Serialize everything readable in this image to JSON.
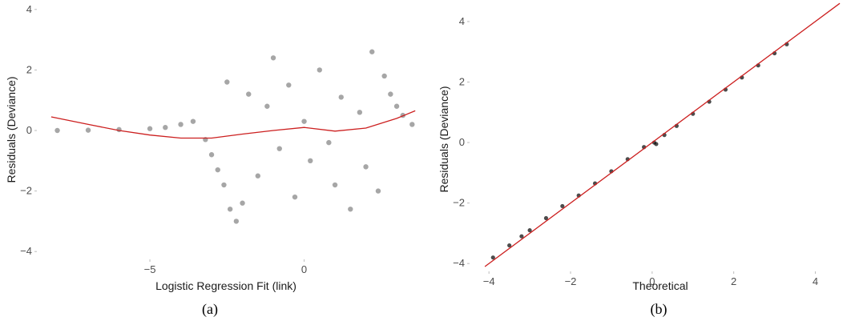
{
  "chart_data": [
    {
      "type": "scatter",
      "panel": "(a)",
      "xlabel": "Logistic Regression Fit (link)",
      "ylabel": "Residuals (Deviance)",
      "xlim": [
        -8.3,
        3.7
      ],
      "ylim": [
        -4.1,
        4.1
      ],
      "x_ticks": [
        -5,
        0
      ],
      "y_ticks": [
        -4,
        -2,
        0,
        2,
        4
      ],
      "x_tick_labels": [
        "−5",
        "0"
      ],
      "y_tick_labels": [
        "−4",
        "−2",
        "0",
        "2",
        "4"
      ],
      "grid": false,
      "point_color": "#000000",
      "series": [
        {
          "type": "scatter",
          "description_points": "dense cloud of semi-transparent points",
          "points": [
            [
              -8,
              0.0
            ],
            [
              -7,
              0.01
            ],
            [
              -6,
              0.03
            ],
            [
              -5,
              0.06
            ],
            [
              -4.5,
              0.1
            ],
            [
              -4,
              0.2
            ],
            [
              -3.6,
              0.3
            ],
            [
              -3.2,
              -0.3
            ],
            [
              -3,
              -0.8
            ],
            [
              -2.8,
              -1.3
            ],
            [
              -2.6,
              -1.8
            ],
            [
              -2.4,
              -2.6
            ],
            [
              -2.2,
              -3.0
            ],
            [
              -2.5,
              1.6
            ],
            [
              -2.0,
              -2.4
            ],
            [
              -1.8,
              1.2
            ],
            [
              -1.5,
              -1.5
            ],
            [
              -1.2,
              0.8
            ],
            [
              -1.0,
              2.4
            ],
            [
              -0.8,
              -0.6
            ],
            [
              -0.5,
              1.5
            ],
            [
              -0.3,
              -2.2
            ],
            [
              0,
              0.3
            ],
            [
              0.2,
              -1.0
            ],
            [
              0.5,
              2.0
            ],
            [
              0.8,
              -0.4
            ],
            [
              1.0,
              -1.8
            ],
            [
              1.2,
              1.1
            ],
            [
              1.5,
              -2.6
            ],
            [
              1.8,
              0.6
            ],
            [
              2.0,
              -1.2
            ],
            [
              2.2,
              2.6
            ],
            [
              2.4,
              -2.0
            ],
            [
              2.6,
              1.8
            ],
            [
              2.8,
              1.2
            ],
            [
              3.0,
              0.8
            ],
            [
              3.2,
              0.5
            ],
            [
              3.5,
              0.2
            ]
          ]
        },
        {
          "type": "line",
          "name": "",
          "color": "#cc1f1f",
          "points": [
            [
              -8.2,
              0.45
            ],
            [
              -7,
              0.2
            ],
            [
              -6,
              0.0
            ],
            [
              -5,
              -0.15
            ],
            [
              -4,
              -0.25
            ],
            [
              -3,
              -0.25
            ],
            [
              -2,
              -0.12
            ],
            [
              -1,
              0.0
            ],
            [
              0,
              0.1
            ],
            [
              1,
              -0.02
            ],
            [
              2,
              0.08
            ],
            [
              3,
              0.4
            ],
            [
              3.6,
              0.65
            ]
          ]
        }
      ]
    },
    {
      "type": "scatter",
      "panel": "(b)",
      "xlabel": "Theoretical",
      "ylabel": "Residuals (Deviance)",
      "xlim": [
        -4.2,
        4.6
      ],
      "ylim": [
        -4.1,
        4.5
      ],
      "x_ticks": [
        -4,
        -2,
        0,
        2,
        4
      ],
      "y_ticks": [
        -4,
        -2,
        0,
        2,
        4
      ],
      "x_tick_labels": [
        "−4",
        "−2",
        "0",
        "2",
        "4"
      ],
      "y_tick_labels": [
        "−4",
        "−2",
        "0",
        "2",
        "4"
      ],
      "grid": false,
      "series": [
        {
          "type": "scatter",
          "points": [
            [
              -3.9,
              -3.8
            ],
            [
              -3.5,
              -3.4
            ],
            [
              -3.2,
              -3.1
            ],
            [
              -3,
              -2.9
            ],
            [
              -2.6,
              -2.5
            ],
            [
              -2.2,
              -2.1
            ],
            [
              -1.8,
              -1.75
            ],
            [
              -1.4,
              -1.35
            ],
            [
              -1,
              -0.95
            ],
            [
              -0.6,
              -0.55
            ],
            [
              -0.2,
              -0.15
            ],
            [
              0.05,
              0.0
            ],
            [
              0.1,
              -0.05
            ],
            [
              0.3,
              0.25
            ],
            [
              0.6,
              0.55
            ],
            [
              1,
              0.95
            ],
            [
              1.4,
              1.35
            ],
            [
              1.8,
              1.75
            ],
            [
              2.2,
              2.15
            ],
            [
              2.6,
              2.55
            ],
            [
              3,
              2.95
            ],
            [
              3.3,
              3.25
            ]
          ]
        },
        {
          "type": "line",
          "name": "",
          "color": "#cc1f1f",
          "points": [
            [
              -4.1,
              -4.1
            ],
            [
              4.6,
              4.6
            ]
          ]
        }
      ]
    }
  ],
  "captions": {
    "left": "(a)",
    "right": "(b)"
  }
}
